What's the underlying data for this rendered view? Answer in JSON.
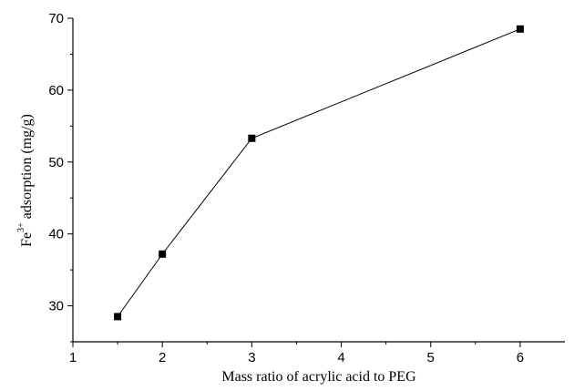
{
  "chart_data": {
    "type": "line",
    "x": [
      1.5,
      2,
      3,
      6
    ],
    "series": [
      {
        "values": [
          28.5,
          37.2,
          53.3,
          68.5
        ]
      }
    ],
    "xlabel": "Mass ratio of acrylic acid to PEG",
    "ylabel": {
      "prefix": "Fe",
      "superscript": "3+",
      "suffix": " adsorption (mg/g)"
    },
    "xlim": [
      1,
      6.5
    ],
    "ylim": [
      25,
      70
    ],
    "xticks": [
      "1",
      "2",
      "3",
      "4",
      "5",
      "6"
    ],
    "yticks": [
      "30",
      "40",
      "50",
      "60",
      "70"
    ],
    "grid": false,
    "marker": "square",
    "color": "#000000"
  }
}
